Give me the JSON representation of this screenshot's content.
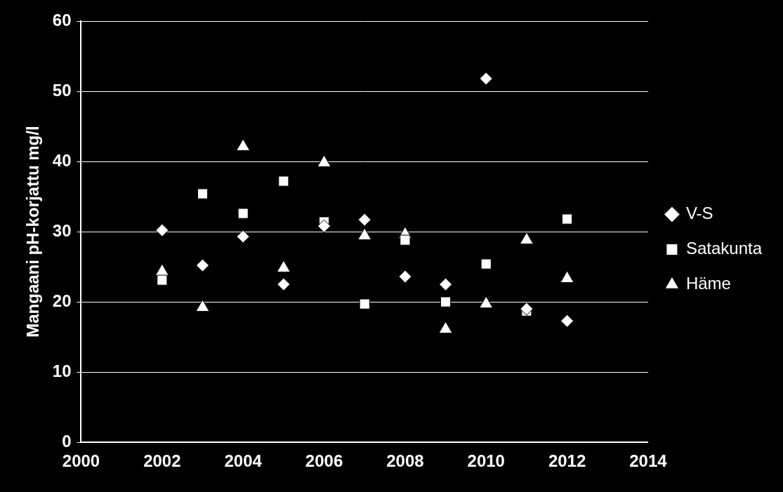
{
  "chart_data": {
    "type": "scatter",
    "y_label": "Mangaani pH-korjattu mg/l",
    "x": [
      2002,
      2003,
      2004,
      2005,
      2006,
      2007,
      2008,
      2009,
      2010,
      2011,
      2012
    ],
    "series": [
      {
        "name": "V-S",
        "color": "#ffffff",
        "marker": "diamond",
        "values": [
          30.2,
          25.2,
          29.3,
          22.5,
          30.8,
          31.7,
          23.6,
          22.5,
          51.8,
          19.0,
          17.3
        ]
      },
      {
        "name": "Satakunta",
        "color": "#ffffff",
        "marker": "square",
        "values": [
          23.1,
          35.4,
          32.6,
          37.2,
          31.4,
          19.7,
          28.8,
          20.0,
          25.4,
          18.7,
          31.8
        ]
      },
      {
        "name": "Häme",
        "color": "#ffffff",
        "marker": "triangle",
        "values": [
          24.3,
          19.2,
          42.1,
          24.8,
          39.8,
          29.4,
          29.6,
          16.1,
          19.7,
          28.8,
          23.3
        ]
      }
    ],
    "xlim": [
      2000,
      2014
    ],
    "xticks": [
      2000,
      2002,
      2004,
      2006,
      2008,
      2010,
      2012,
      2014
    ],
    "ylim": [
      0,
      60
    ],
    "yticks": [
      0,
      10,
      20,
      30,
      40,
      50,
      60
    ],
    "grid": true,
    "legend": "right"
  }
}
